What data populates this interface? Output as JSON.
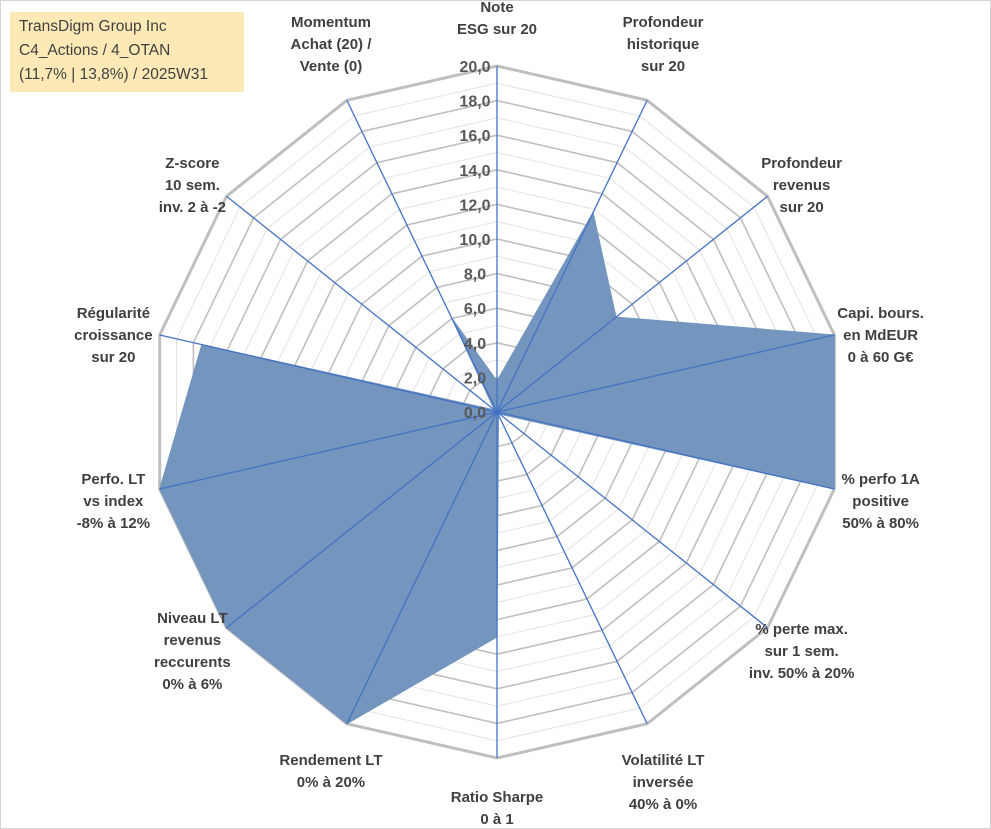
{
  "title_box": {
    "line1": "TransDigm Group Inc",
    "line2": "C4_Actions / 4_OTAN",
    "line3": "(11,7% | 13,8%) / 2025W31"
  },
  "colors": {
    "fill": "#7395be",
    "spoke": "#4472c4",
    "grid_major": "#bfbfbf",
    "grid_minor": "#e2e2e2",
    "label": "#404040",
    "title_bg": "#fde9b6"
  },
  "chart_data": {
    "type": "radar",
    "r_min": 0,
    "r_max": 20,
    "tick_labels": [
      "0,0",
      "2,0",
      "4,0",
      "6,0",
      "8,0",
      "10,0",
      "12,0",
      "14,0",
      "16,0",
      "18,0",
      "20,0"
    ],
    "categories": [
      [
        "Note",
        "ESG sur 20"
      ],
      [
        "Profondeur",
        "historique",
        "sur 20"
      ],
      [
        "Profondeur",
        "revenus",
        "sur 20"
      ],
      [
        "Capi. bours.",
        "en MdEUR",
        "0 à 60 G€"
      ],
      [
        "% perfo 1A",
        "positive",
        "50% à 80%"
      ],
      [
        "% perte max.",
        "sur 1 sem.",
        "inv. 50% à 20%"
      ],
      [
        "Volatilité LT",
        "inversée",
        "40% à 0%"
      ],
      [
        "Ratio Sharpe",
        "0 à 1"
      ],
      [
        "Rendement LT",
        "0% à 20%"
      ],
      [
        "Niveau LT",
        "revenus",
        "reccurents",
        "0% à 6%"
      ],
      [
        "Perfo. LT",
        "vs index",
        "-8% à 12%"
      ],
      [
        "Régularité",
        "croissance",
        "sur 20"
      ],
      [
        "Z-score",
        "10 sem.",
        "inv. 2 à -2"
      ],
      [
        "Momentum",
        "Achat (20) /",
        "Vente (0)"
      ]
    ],
    "values": [
      1.8,
      12.8,
      8.8,
      20.0,
      20.0,
      0.2,
      0.2,
      13.0,
      20.0,
      20.0,
      20.0,
      17.5,
      0.2,
      6.0
    ],
    "grid": true,
    "legend": "none"
  }
}
